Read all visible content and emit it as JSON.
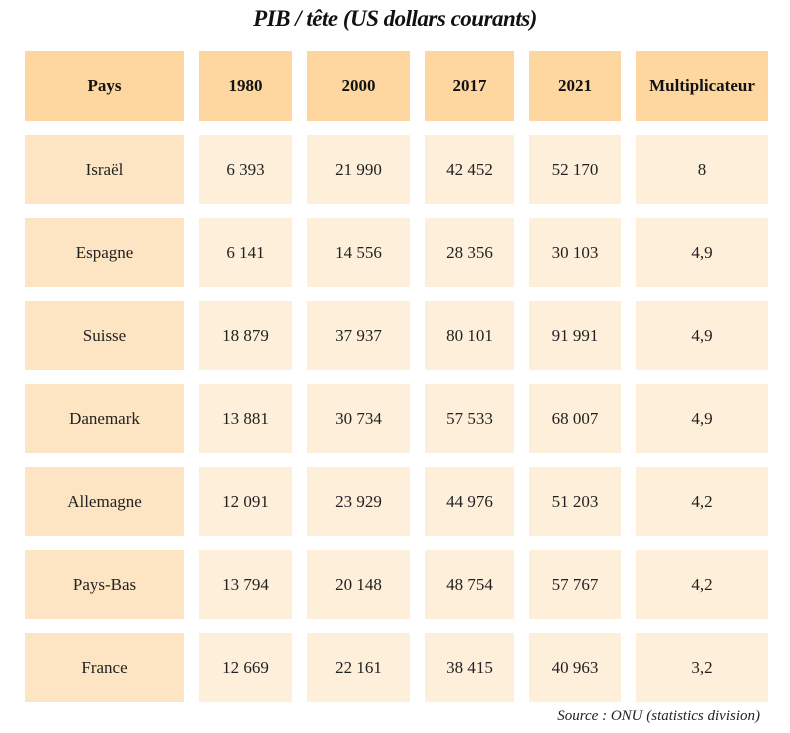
{
  "title": "PIB / tête (US dollars courants)",
  "table": {
    "headers": [
      "Pays",
      "1980",
      "2000",
      "2017",
      "2021",
      "Multiplicateur"
    ],
    "rows": [
      [
        "Israël",
        "6 393",
        "21 990",
        "42 452",
        "52 170",
        "8"
      ],
      [
        "Espagne",
        "6 141",
        "14 556",
        "28 356",
        "30 103",
        "4,9"
      ],
      [
        "Suisse",
        "18 879",
        "37 937",
        "80 101",
        "91 991",
        "4,9"
      ],
      [
        "Danemark",
        "13 881",
        "30 734",
        "57 533",
        "68 007",
        "4,9"
      ],
      [
        "Allemagne",
        "12 091",
        "23 929",
        "44 976",
        "51 203",
        "4,2"
      ],
      [
        "Pays-Bas",
        "13 794",
        "20 148",
        "48 754",
        "57 767",
        "4,2"
      ],
      [
        "France",
        "12 669",
        "22 161",
        "38 415",
        "40 963",
        "3,2"
      ]
    ]
  },
  "source": "Source : ONU (statistics division)",
  "colors": {
    "header_fill": "#fed6a0",
    "country_fill": "#fde5c3",
    "cell_fill": "#feefdb"
  }
}
